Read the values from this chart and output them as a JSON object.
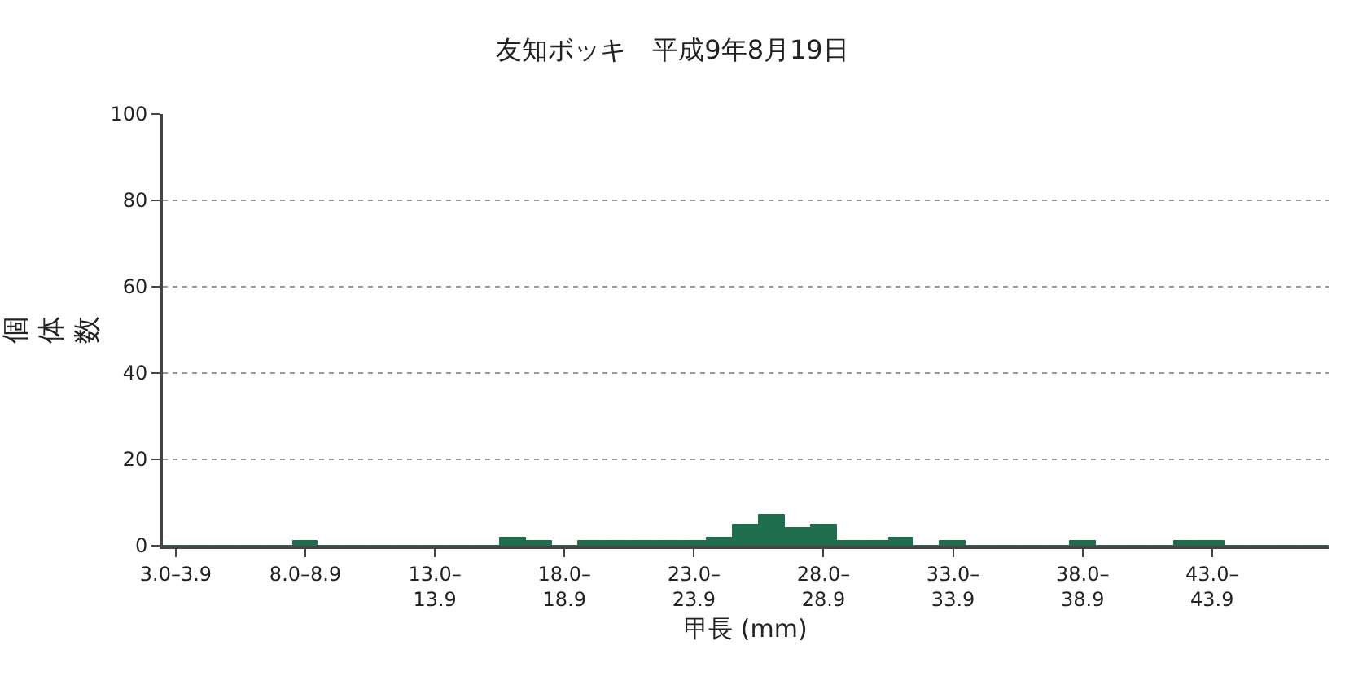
{
  "chart_data": {
    "type": "bar",
    "title": "友知ボッキ　平成9年8月19日",
    "xlabel": "甲長 (mm)",
    "ylabel": "個体数",
    "categories": [
      "3.0–3.9",
      null,
      null,
      null,
      null,
      "8.0–8.9",
      null,
      null,
      null,
      null,
      "13.0–13.9",
      null,
      null,
      null,
      null,
      "18.0–18.9",
      null,
      null,
      null,
      null,
      "23.0–23.9",
      null,
      null,
      null,
      null,
      "28.0–28.9",
      null,
      null,
      null,
      null,
      "33.0–33.9",
      null,
      null,
      null,
      null,
      "38.0–38.9",
      null,
      null,
      null,
      null,
      "43.0–43.9",
      null,
      null,
      null,
      null
    ],
    "values": [
      0,
      0,
      0,
      0,
      0,
      1,
      0,
      0,
      0,
      0,
      0,
      0,
      0,
      2,
      1,
      0,
      1,
      1,
      1,
      1,
      1,
      2,
      5,
      7,
      4,
      5,
      1,
      1,
      2,
      0,
      1,
      0,
      0,
      0,
      0,
      1,
      0,
      0,
      0,
      1,
      1,
      0,
      0,
      0,
      0
    ],
    "color": "#1e6e4e",
    "ylim": [
      0,
      100
    ],
    "yticks": [
      0,
      20,
      40,
      60,
      80,
      100
    ],
    "grid": "y"
  }
}
